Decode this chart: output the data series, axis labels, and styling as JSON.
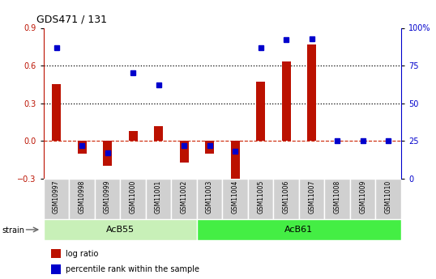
{
  "title": "GDS471 / 131",
  "samples": [
    "GSM10997",
    "GSM10998",
    "GSM10999",
    "GSM11000",
    "GSM11001",
    "GSM11002",
    "GSM11003",
    "GSM11004",
    "GSM11005",
    "GSM11006",
    "GSM11007",
    "GSM11008",
    "GSM11009",
    "GSM11010"
  ],
  "log_ratio": [
    0.45,
    -0.1,
    -0.2,
    0.08,
    0.12,
    -0.17,
    -0.1,
    -0.32,
    0.47,
    0.63,
    0.77,
    0.0,
    0.0,
    0.0
  ],
  "percentile": [
    87,
    22,
    17,
    70,
    62,
    22,
    22,
    18,
    87,
    92,
    93,
    25,
    25,
    25
  ],
  "groups": [
    {
      "label": "AcB55",
      "start": 0,
      "end": 5,
      "color": "#c8f0b8"
    },
    {
      "label": "AcB61",
      "start": 6,
      "end": 13,
      "color": "#44ee44"
    }
  ],
  "ylim_left": [
    -0.3,
    0.9
  ],
  "ylim_right": [
    0,
    100
  ],
  "yticks_left": [
    -0.3,
    0.0,
    0.3,
    0.6,
    0.9
  ],
  "yticks_right": [
    0,
    25,
    50,
    75,
    100
  ],
  "hlines": [
    0.3,
    0.6
  ],
  "bar_color": "#bb1100",
  "dot_color": "#0000cc",
  "zero_line_color": "#cc2200",
  "tick_color": "#bbbbbb",
  "legend_labels": [
    "log ratio",
    "percentile rank within the sample"
  ]
}
